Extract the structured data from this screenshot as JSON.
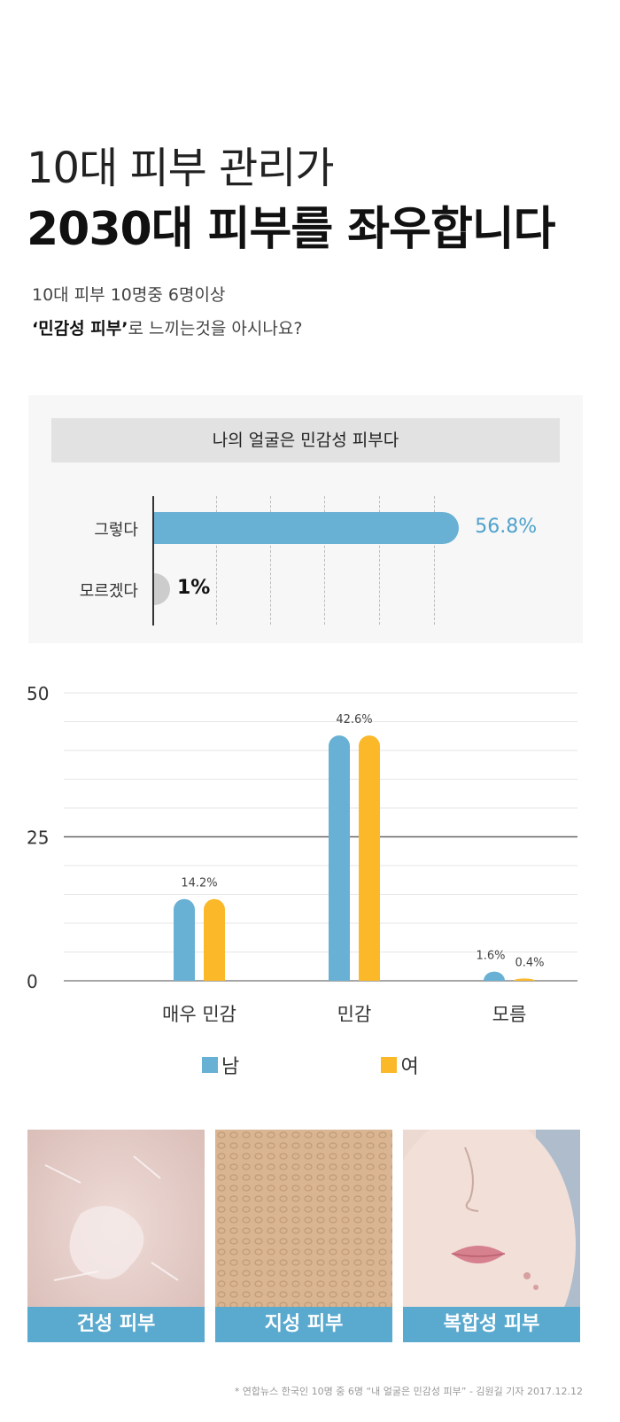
{
  "headline": {
    "line1": "10대 피부 관리가",
    "line2": "2030대 피부를 좌우합니다"
  },
  "subtitle": {
    "line1": "10대 피부 10명중 6명이상",
    "line2_bold": "‘민감성 피부’",
    "line2_rest": "로 느끼는것을 아시나요?"
  },
  "survey": {
    "title": "나의 얼굴은 민감성 피부다",
    "rows": [
      {
        "label": "그렇다",
        "value": 56.8,
        "value_text": "56.8%"
      },
      {
        "label": "모르겠다",
        "value": 1,
        "value_text": "1%"
      }
    ]
  },
  "chart_data": {
    "type": "bar",
    "categories": [
      "매우 민감",
      "민감",
      "모름"
    ],
    "series": [
      {
        "name": "남",
        "values": [
          14.2,
          42.6,
          1.6
        ],
        "color": "#68b0d4"
      },
      {
        "name": "여",
        "values": [
          14.2,
          42.6,
          0.4
        ],
        "color": "#fbb829"
      }
    ],
    "data_labels": [
      "14.2%",
      "42.6%",
      "1.6%",
      "0.4%"
    ],
    "y_ticks": [
      "50",
      "25",
      "0"
    ],
    "ylim": [
      0,
      50
    ],
    "grid": true,
    "legend_position": "bottom"
  },
  "skin_types": [
    {
      "caption": "건성 피부"
    },
    {
      "caption": "지성 피부"
    },
    {
      "caption": "복합성 피부"
    }
  ],
  "footnote": "* 연합뉴스 한국인 10명 중 6명 “내 얼굴은 민감성 피부” - 김원길 기자 2017.12.12"
}
